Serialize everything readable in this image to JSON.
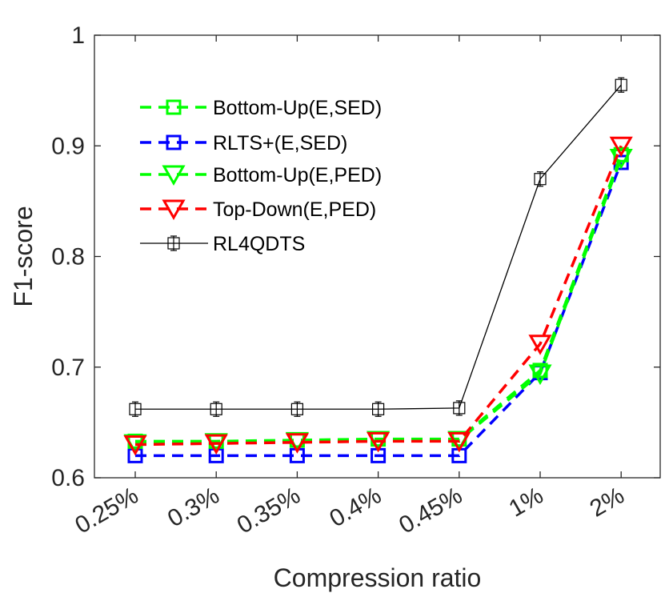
{
  "chart_data": {
    "type": "line",
    "title": "",
    "xlabel": "Compression ratio",
    "ylabel": "F1-score",
    "categories": [
      "0.25%",
      "0.3%",
      "0.35%",
      "0.4%",
      "0.45%",
      "1%",
      "2%"
    ],
    "ylim": [
      0.6,
      1.0
    ],
    "yticks": [
      0.6,
      0.7,
      0.8,
      0.9,
      1.0
    ],
    "ytick_labels": [
      "0.6",
      "0.7",
      "0.8",
      "0.9",
      "1"
    ],
    "grid": false,
    "legend_position": "top-left",
    "series": [
      {
        "name": "Bottom-Up(E,SED)",
        "color": "#00ff00",
        "line_style": "dashed",
        "marker": "square",
        "values": [
          0.633,
          0.633,
          0.634,
          0.635,
          0.635,
          0.697,
          0.892
        ]
      },
      {
        "name": "RLTS+(E,SED)",
        "color": "#0000ff",
        "line_style": "dashed",
        "marker": "square",
        "values": [
          0.62,
          0.62,
          0.62,
          0.62,
          0.62,
          0.695,
          0.885
        ]
      },
      {
        "name": "Bottom-Up(E,PED)",
        "color": "#00ff00",
        "line_style": "dashed",
        "marker": "triangle-down",
        "values": [
          0.631,
          0.632,
          0.633,
          0.634,
          0.634,
          0.694,
          0.889
        ]
      },
      {
        "name": "Top-Down(E,PED)",
        "color": "#ff0000",
        "line_style": "dashed",
        "marker": "triangle-down",
        "values": [
          0.63,
          0.631,
          0.632,
          0.633,
          0.633,
          0.721,
          0.9
        ]
      },
      {
        "name": "RL4QDTS",
        "color": "#000000",
        "line_style": "solid",
        "marker": "square-errorbar",
        "values": [
          0.662,
          0.662,
          0.662,
          0.662,
          0.663,
          0.87,
          0.955
        ]
      }
    ]
  }
}
